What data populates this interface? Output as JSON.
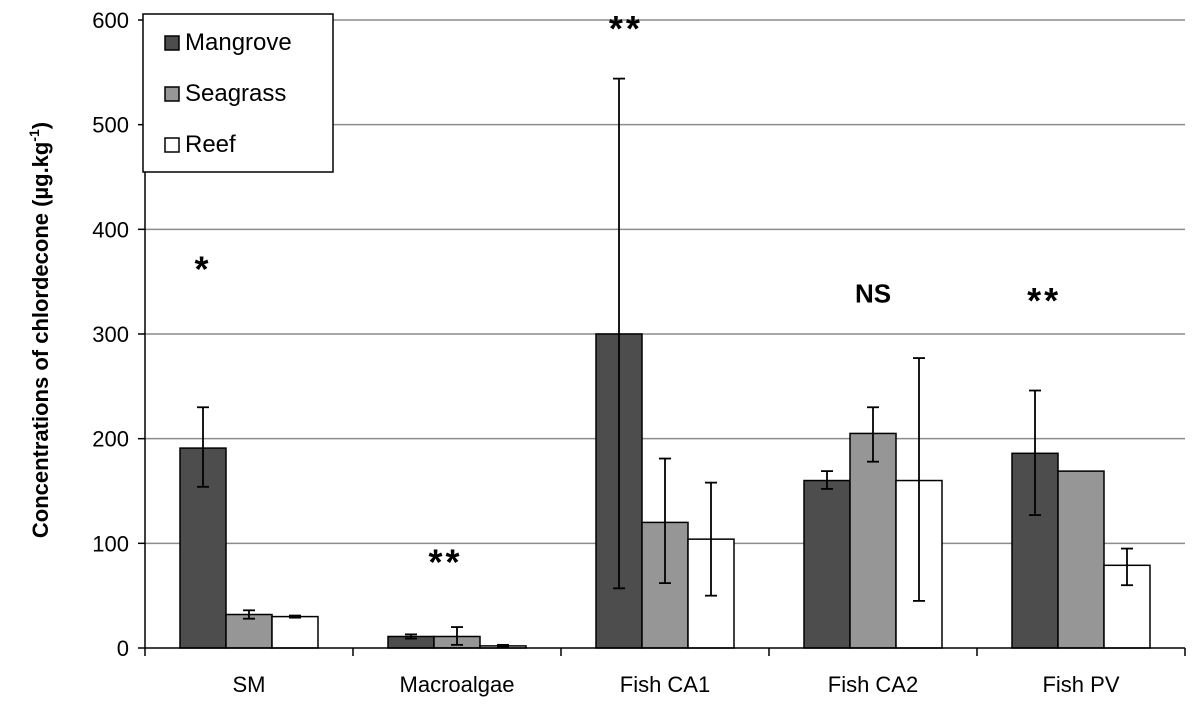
{
  "chart_data": {
    "type": "bar",
    "title": "",
    "xlabel": "",
    "ylabel": "Concentrations of chlordecone (µg.kg",
    "ylabel_sup": "-1",
    "ylabel_close": ")",
    "ylim": [
      0,
      600
    ],
    "yticks": [
      0,
      100,
      200,
      300,
      400,
      500,
      600
    ],
    "grid": true,
    "legend_position": "top-left",
    "categories": [
      "SM",
      "Macroalgae",
      "Fish CA1",
      "Fish CA2",
      "Fish PV"
    ],
    "series": [
      {
        "name": "Mangrove",
        "color": "#4d4d4d",
        "values": [
          191,
          11,
          300,
          160,
          186
        ],
        "err_low": [
          154,
          9,
          57,
          152,
          127
        ],
        "err_high": [
          230,
          13,
          544,
          169,
          246
        ]
      },
      {
        "name": "Seagrass",
        "color": "#969696",
        "values": [
          32,
          11,
          120,
          205,
          169
        ],
        "err_low": [
          28,
          3,
          62,
          178,
          null
        ],
        "err_high": [
          36,
          20,
          181,
          230,
          null
        ]
      },
      {
        "name": "Reef",
        "color": "#ffffff",
        "values": [
          30,
          2,
          104,
          160,
          79
        ],
        "err_low": [
          29,
          1,
          50,
          45,
          60
        ],
        "err_high": [
          31,
          3,
          158,
          277,
          95
        ]
      }
    ],
    "significance": [
      "*",
      "**",
      "**",
      "NS",
      "**"
    ],
    "significance_value": [
      350,
      70,
      580,
      330,
      320
    ]
  }
}
